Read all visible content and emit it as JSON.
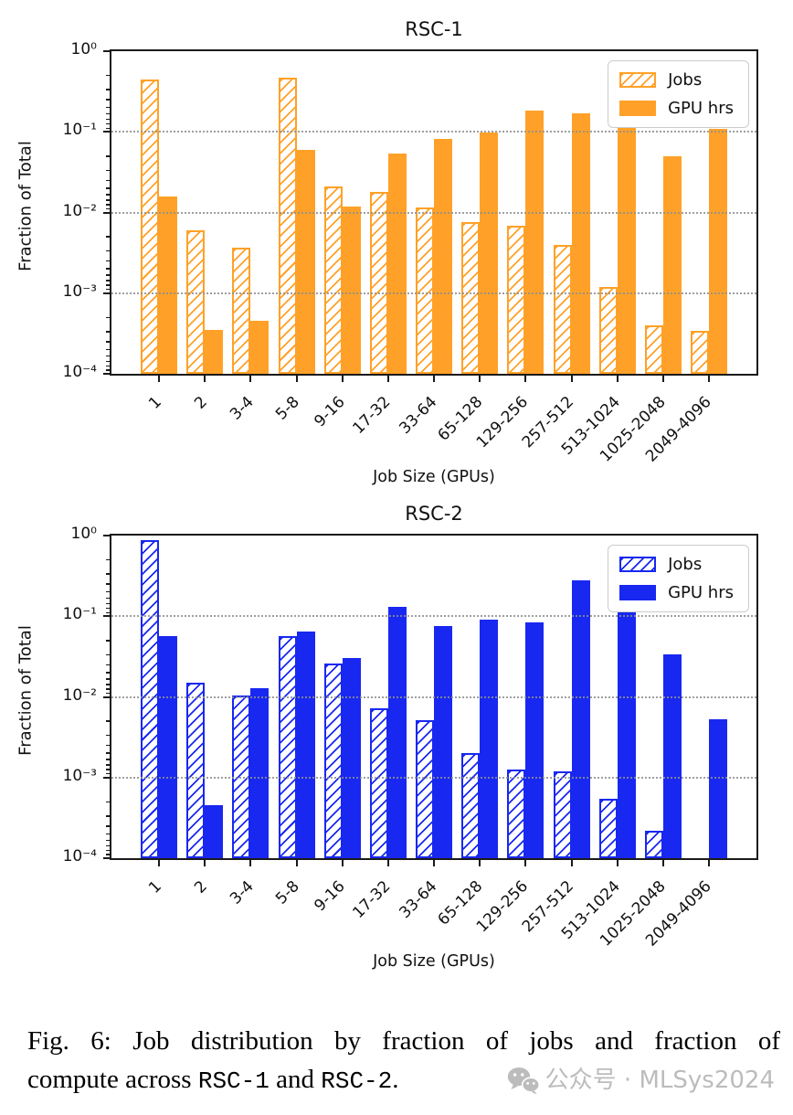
{
  "axes": {
    "ylabel": "Fraction of Total",
    "xlabel": "Job Size (GPUs)",
    "yticks": [
      "10⁰",
      "10⁻¹",
      "10⁻²",
      "10⁻³",
      "10⁻⁴"
    ]
  },
  "legend": {
    "jobs": "Jobs",
    "gpu": "GPU hrs"
  },
  "colors": {
    "rsc1": "#FFA128",
    "rsc2": "#1828F0",
    "grid": "#8f8f8f",
    "watermark": "#bcbcbc"
  },
  "chart_data": [
    {
      "type": "bar",
      "title": "RSC-1",
      "yscale": "log",
      "ylim": [
        0.0001,
        1
      ],
      "ylabel": "Fraction of Total",
      "xlabel": "Job Size (GPUs)",
      "grid": "horizontal dotted at decades",
      "legend_position": "upper right",
      "color": "#FFA128",
      "categories": [
        "1",
        "2",
        "3-4",
        "5-8",
        "9-16",
        "17-32",
        "33-64",
        "65-128",
        "129-256",
        "257-512",
        "513-1024",
        "1025-2048",
        "2049-4096"
      ],
      "series": [
        {
          "name": "Jobs",
          "style": "hatched",
          "values": [
            0.44,
            0.006,
            0.0037,
            0.47,
            0.021,
            0.018,
            0.0115,
            0.0077,
            0.0068,
            0.004,
            0.0012,
            0.0004,
            0.00034
          ]
        },
        {
          "name": "GPU hrs",
          "style": "solid",
          "values": [
            0.016,
            0.00035,
            0.00045,
            0.059,
            0.012,
            0.054,
            0.081,
            0.098,
            0.185,
            0.17,
            0.134,
            0.05,
            0.11
          ]
        }
      ]
    },
    {
      "type": "bar",
      "title": "RSC-2",
      "yscale": "log",
      "ylim": [
        0.0001,
        1
      ],
      "ylabel": "Fraction of Total",
      "xlabel": "Job Size (GPUs)",
      "grid": "horizontal dotted at decades",
      "legend_position": "upper right",
      "color": "#1828F0",
      "categories": [
        "1",
        "2",
        "3-4",
        "5-8",
        "9-16",
        "17-32",
        "33-64",
        "65-128",
        "129-256",
        "257-512",
        "513-1024",
        "1025-2048",
        "2049-4096"
      ],
      "series": [
        {
          "name": "Jobs",
          "style": "hatched",
          "values": [
            0.88,
            0.015,
            0.0105,
            0.057,
            0.026,
            0.0073,
            0.0052,
            0.002,
            0.00125,
            0.0012,
            0.00055,
            0.00022,
            null
          ]
        },
        {
          "name": "GPU hrs",
          "style": "solid",
          "values": [
            0.056,
            0.00046,
            0.0127,
            0.064,
            0.03,
            0.13,
            0.076,
            0.09,
            0.083,
            0.28,
            0.12,
            0.034,
            0.0053
          ]
        }
      ]
    }
  ],
  "caption": {
    "line1": "Fig. 6: Job distribution by fraction of jobs and fraction of",
    "line2_parts": {
      "t1": "compute across ",
      "code1": "RSC-1",
      "t2": " and ",
      "code2": "RSC-2",
      "t3": "."
    },
    "watermark_text": "公众号 · MLSys2024"
  }
}
